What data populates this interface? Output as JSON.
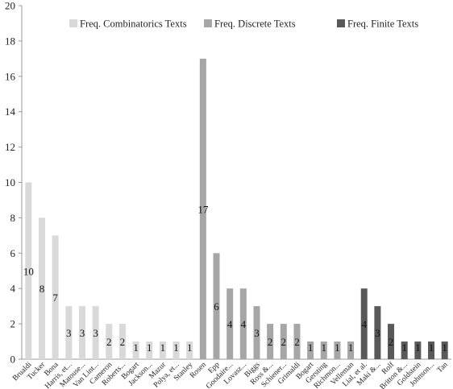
{
  "chart_data": {
    "type": "bar",
    "title": "",
    "xlabel": "",
    "ylabel": "",
    "ylim": [
      0,
      20
    ],
    "yticks": [
      0,
      2,
      4,
      6,
      8,
      10,
      12,
      14,
      16,
      18,
      20
    ],
    "grid": false,
    "legend_position": "top-right",
    "series": [
      {
        "name": "Freq. Combinatorics Texts",
        "color": "#d9d9d9",
        "categories": [
          "Brualdi",
          "Tucker",
          "Bona",
          "Harris, et...",
          "Matouse...",
          "Van Lint...",
          "Cameron",
          "Roberts...",
          "Bogart",
          "Jackson...",
          "Mazur",
          "Polya, et...",
          "Stanley"
        ],
        "values": [
          10,
          8,
          7,
          3,
          3,
          3,
          2,
          2,
          1,
          1,
          1,
          1,
          1
        ]
      },
      {
        "name": "Freq. Discrete Texts",
        "color": "#a6a6a6",
        "categories": [
          "Rosen",
          "Epp",
          "Goodaire...",
          "Lovasz...",
          "Biggs",
          "Ross &...",
          "Schiener...",
          "Grimaldi",
          "Bogart",
          "Gersting",
          "Richmon...",
          "Velleman"
        ],
        "values": [
          17,
          6,
          4,
          4,
          3,
          2,
          2,
          2,
          1,
          1,
          1,
          1
        ]
      },
      {
        "name": "Freq. Finite Texts",
        "color": "#595959",
        "categories": [
          "Lial, et al.",
          "Maki &...",
          "Rolf",
          "Britton &...",
          "Goldstein",
          "Johnson...",
          "Tan"
        ],
        "values": [
          4,
          3,
          2,
          1,
          1,
          1,
          1
        ]
      }
    ]
  }
}
